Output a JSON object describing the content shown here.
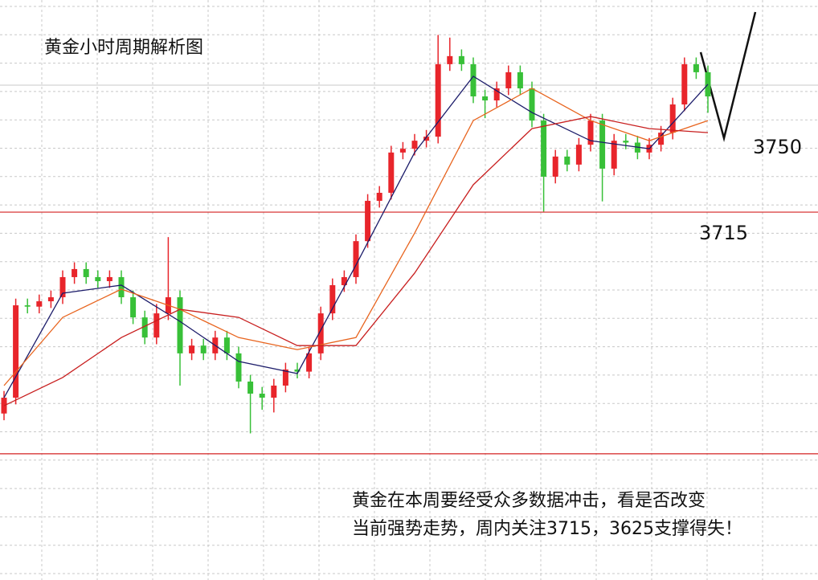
{
  "chart_data": {
    "type": "candlestick",
    "title": "黄金小时周期解析图",
    "ylim": [
      3578,
      3794
    ],
    "up_color": "#e8252b",
    "down_color": "#38c038",
    "open": [
      3640,
      3645.9,
      3680.3,
      3679.8,
      3681.8,
      3683.3,
      3690.8,
      3693.8,
      3690.8,
      3689.3,
      3690.8,
      3683.3,
      3675.8,
      3668.3,
      3677.3,
      3683.3,
      3662.4,
      3665.3,
      3662.4,
      3668.3,
      3662.4,
      3651.9,
      3647.4,
      3645.9,
      3650.4,
      3656.4,
      3655.6,
      3662.4,
      3677.3,
      3687.8,
      3690.8,
      3704.2,
      3719.2,
      3722.2,
      3737.2,
      3738.6,
      3741.6,
      3743.1,
      3770.1,
      3773.1,
      3770.1,
      3758.1,
      3756.6,
      3761.1,
      3767.1,
      3761.1,
      3749.1,
      3728.2,
      3735.7,
      3732.7,
      3740.1,
      3749.1,
      3731.2,
      3741.6,
      3740.9,
      3737.2,
      3740.1,
      3744.6,
      3755.1,
      3770.1,
      3767.1
    ],
    "high": [
      3648.4,
      3682.8,
      3682.8,
      3684.3,
      3685.8,
      3693.3,
      3696.3,
      3696.3,
      3693.3,
      3693.3,
      3693.3,
      3685.8,
      3678.3,
      3680.8,
      3705.7,
      3685.8,
      3667.8,
      3667.8,
      3670.8,
      3670.8,
      3664.9,
      3654.4,
      3649.9,
      3652.9,
      3658.9,
      3658.9,
      3664.9,
      3679.8,
      3690.3,
      3693.3,
      3706.7,
      3721.7,
      3724.7,
      3739.7,
      3741.1,
      3744.1,
      3745.6,
      3781,
      3780,
      3775.6,
      3772.6,
      3760.6,
      3763.6,
      3769.6,
      3769.6,
      3763.6,
      3751.6,
      3738.2,
      3738.2,
      3742.6,
      3751.6,
      3751.6,
      3744.1,
      3744.1,
      3743.4,
      3742.6,
      3747.1,
      3757.6,
      3772.6,
      3772.6,
      3769.6
    ],
    "low": [
      3637.5,
      3643.4,
      3677.3,
      3677.3,
      3679.3,
      3680.8,
      3688.3,
      3688.3,
      3686.8,
      3686.8,
      3680.8,
      3673.3,
      3665.8,
      3665.8,
      3674.8,
      3650.4,
      3659.9,
      3659.9,
      3659.9,
      3659.9,
      3649.4,
      3632.6,
      3641.4,
      3640.4,
      3647.9,
      3653.1,
      3653.1,
      3659.9,
      3674.8,
      3685.3,
      3688.3,
      3701.7,
      3716.7,
      3719.7,
      3734.7,
      3736.1,
      3739.1,
      3740.6,
      3767.6,
      3767.6,
      3755.6,
      3750,
      3754.1,
      3758.6,
      3758.6,
      3746.6,
      3715.2,
      3725.7,
      3730.2,
      3730.2,
      3737.6,
      3719,
      3728.7,
      3738.4,
      3734.7,
      3734.7,
      3737.6,
      3742.1,
      3752.6,
      3764.6,
      3752
    ],
    "close": [
      3645.9,
      3680.3,
      3679.8,
      3681.8,
      3683.3,
      3690.8,
      3693.8,
      3690.8,
      3689.3,
      3690.8,
      3683.3,
      3675.8,
      3668.3,
      3677.3,
      3683.3,
      3662.4,
      3665.3,
      3662.4,
      3668.3,
      3662.4,
      3651.9,
      3647.4,
      3645.9,
      3650.4,
      3656.4,
      3655.6,
      3662.4,
      3677.3,
      3687.8,
      3690.8,
      3704.2,
      3719.2,
      3722.2,
      3737.2,
      3738.6,
      3741.6,
      3743.1,
      3770.1,
      3773.1,
      3770.1,
      3758.1,
      3756.6,
      3761.1,
      3767.1,
      3761.1,
      3749.1,
      3728.2,
      3735.7,
      3732.7,
      3740.1,
      3749.1,
      3731.2,
      3741.6,
      3740.9,
      3737.2,
      3740.1,
      3744.6,
      3755.1,
      3770.1,
      3767.1,
      3758.1
    ],
    "ma_x": [
      0,
      5,
      10,
      15,
      20,
      25,
      30,
      35,
      40,
      45,
      50,
      55,
      60
    ],
    "ma": [
      {
        "color": "#1c1c6a",
        "values": [
          3645.9,
          3684.8,
          3687.8,
          3674.3,
          3659.4,
          3654.9,
          3695.3,
          3737.2,
          3765.6,
          3752.1,
          3741.6,
          3738.6,
          3762.6
        ]
      },
      {
        "color": "#e8641e",
        "values": [
          3650.4,
          3675.8,
          3686.3,
          3678.8,
          3668.3,
          3663.8,
          3668.3,
          3707.2,
          3749.1,
          3761.1,
          3749.1,
          3741.6,
          3749.1
        ]
      },
      {
        "color": "#c81e1e",
        "values": [
          3642.9,
          3653.4,
          3668.3,
          3678.8,
          3675.8,
          3665.3,
          3665.3,
          3692.3,
          3725.2,
          3746.1,
          3750.6,
          3746.1,
          3744.6
        ]
      }
    ],
    "levels": [
      3715,
      3625
    ],
    "level_color": "#d42020",
    "target": 3750,
    "annotation": [
      "黄金在本周要经受众多数据冲击，看是否改变",
      "当前强势走势，周内关注3715，3625支撑得失！"
    ]
  }
}
